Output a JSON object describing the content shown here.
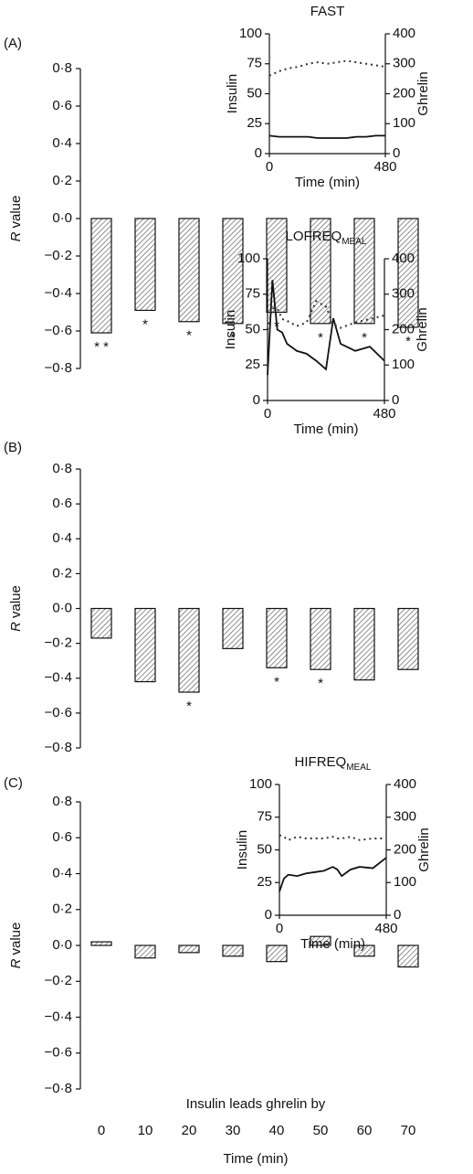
{
  "chart_data": [
    {
      "type": "bar",
      "panel_label": "(A)",
      "categories": [
        null,
        null,
        null,
        null,
        null,
        null,
        null,
        null
      ],
      "values": [
        -0.61,
        -0.49,
        -0.55,
        -0.56,
        -0.5,
        -0.56,
        -0.56,
        -0.58
      ],
      "annotations": [
        "* *",
        "*",
        "*",
        "*",
        "*",
        "*",
        "*",
        "*"
      ],
      "color": "#555555",
      "ylim": [
        -0.8,
        0.8
      ],
      "yticks": [
        {
          "value": 0.8,
          "label": "0·8"
        },
        {
          "value": 0.6,
          "label": "0·6"
        },
        {
          "value": 0.4,
          "label": "0·4"
        },
        {
          "value": 0.2,
          "label": "0·2"
        },
        {
          "value": 0,
          "label": "0·0"
        },
        {
          "value": -0.2,
          "label": "−0·2"
        },
        {
          "value": -0.4,
          "label": "−0·4"
        },
        {
          "value": -0.6,
          "label": "−0·6"
        },
        {
          "value": -0.8,
          "label": "−0·8"
        }
      ],
      "y_label_symbol": "R",
      "y_label": "value",
      "inset": {
        "type": "line",
        "title": "FAST",
        "x_label": "Time (min)",
        "x": [
          0,
          40,
          80,
          120,
          160,
          200,
          240,
          280,
          320,
          360,
          400,
          440,
          480
        ],
        "series": [
          {
            "name": "Insulin",
            "axis": "y",
            "color": "#111111",
            "style": "solid",
            "values": [
              15,
              14,
              14,
              14,
              14,
              13,
              13,
              13,
              13,
              14,
              14,
              15,
              15
            ]
          },
          {
            "name": "Ghrelin",
            "axis": "y2",
            "color": "#333333",
            "style": "dotted",
            "values": [
              260,
              275,
              285,
              290,
              300,
              305,
              300,
              305,
              310,
              305,
              300,
              295,
              290
            ]
          }
        ],
        "xlim": [
          0,
          480
        ],
        "xticks": [
          0,
          480
        ],
        "ylim": [
          0,
          100
        ],
        "yticks": [
          0,
          25,
          50,
          75,
          100
        ],
        "y2lim": [
          0,
          400
        ],
        "y2ticks": [
          0,
          100,
          200,
          300,
          400
        ]
      }
    },
    {
      "type": "bar",
      "panel_label": "(B)",
      "categories": [
        null,
        null,
        null,
        null,
        null,
        null,
        null,
        null
      ],
      "values": [
        -0.17,
        -0.42,
        -0.48,
        -0.23,
        -0.34,
        -0.35,
        -0.41,
        -0.35
      ],
      "annotations": [
        null,
        null,
        "*",
        null,
        "*",
        "*",
        null,
        null
      ],
      "color": "#555555",
      "ylim": [
        -0.8,
        0.8
      ],
      "yticks": [
        {
          "value": 0.8,
          "label": "0·8"
        },
        {
          "value": 0.6,
          "label": "0·6"
        },
        {
          "value": 0.4,
          "label": "0·4"
        },
        {
          "value": 0.2,
          "label": "0·2"
        },
        {
          "value": 0,
          "label": "0·0"
        },
        {
          "value": -0.2,
          "label": "−0·2"
        },
        {
          "value": -0.4,
          "label": "−0·4"
        },
        {
          "value": -0.6,
          "label": "−0·6"
        },
        {
          "value": -0.8,
          "label": "−0·8"
        }
      ],
      "y_label_symbol": "R",
      "y_label": "value",
      "inset": {
        "type": "line",
        "title": "LOFREQ",
        "title_sub": "MEAL",
        "x_label": "Time (min)",
        "x": [
          0,
          20,
          40,
          60,
          80,
          120,
          160,
          200,
          240,
          270,
          300,
          360,
          420,
          480
        ],
        "series": [
          {
            "name": "Insulin",
            "axis": "y",
            "color": "#111111",
            "style": "solid",
            "values": [
              18,
              85,
              50,
              48,
              40,
              35,
              33,
              28,
              22,
              58,
              40,
              35,
              38,
              28
            ]
          },
          {
            "name": "Ghrelin",
            "axis": "y2",
            "color": "#333333",
            "style": "dotted",
            "values": [
              200,
              260,
              260,
              230,
              225,
              210,
              220,
              280,
              265,
              215,
              205,
              220,
              230,
              240
            ]
          }
        ],
        "xlim": [
          0,
          480
        ],
        "xticks": [
          0,
          480
        ],
        "ylim": [
          0,
          100
        ],
        "yticks": [
          0,
          25,
          50,
          75,
          100
        ],
        "y2lim": [
          0,
          400
        ],
        "y2ticks": [
          0,
          100,
          200,
          300,
          400
        ]
      }
    },
    {
      "type": "bar",
      "panel_label": "(C)",
      "categories": [
        0,
        10,
        20,
        30,
        40,
        50,
        60,
        70
      ],
      "values": [
        0.02,
        -0.07,
        -0.04,
        -0.06,
        -0.09,
        0.05,
        -0.06,
        -0.12
      ],
      "annotations": [
        null,
        null,
        null,
        null,
        null,
        null,
        null,
        null
      ],
      "color": "#555555",
      "ylim": [
        -0.8,
        0.8
      ],
      "yticks": [
        {
          "value": 0.8,
          "label": "0·8"
        },
        {
          "value": 0.6,
          "label": "0·6"
        },
        {
          "value": 0.4,
          "label": "0·4"
        },
        {
          "value": 0.2,
          "label": "0·2"
        },
        {
          "value": 0,
          "label": "0·0"
        },
        {
          "value": -0.2,
          "label": "−0·2"
        },
        {
          "value": -0.4,
          "label": "−0·4"
        },
        {
          "value": -0.6,
          "label": "−0·6"
        },
        {
          "value": -0.8,
          "label": "−0·8"
        }
      ],
      "y_label_symbol": "R",
      "y_label": "value",
      "x_label": "Insulin leads ghrelin by",
      "x_label_2": "Time (min)",
      "inset": {
        "type": "line",
        "title": "HIFREQ",
        "title_sub": "MEAL",
        "x_label": "Time (min)",
        "x": [
          0,
          20,
          40,
          80,
          120,
          160,
          200,
          240,
          260,
          280,
          320,
          360,
          420,
          480
        ],
        "series": [
          {
            "name": "Insulin",
            "axis": "y",
            "color": "#111111",
            "style": "solid",
            "values": [
              18,
              28,
              31,
              30,
              32,
              33,
              34,
              37,
              35,
              30,
              35,
              37,
              36,
              44
            ]
          },
          {
            "name": "Ghrelin",
            "axis": "y2",
            "color": "#333333",
            "style": "dotted",
            "values": [
              245,
              240,
              230,
              240,
              235,
              235,
              235,
              240,
              235,
              235,
              240,
              230,
              235,
              235
            ]
          }
        ],
        "xlim": [
          0,
          480
        ],
        "xticks": [
          0,
          480
        ],
        "ylim": [
          0,
          100
        ],
        "yticks": [
          0,
          25,
          50,
          75,
          100
        ],
        "y2lim": [
          0,
          400
        ],
        "y2ticks": [
          0,
          100,
          200,
          300,
          400
        ]
      }
    }
  ]
}
